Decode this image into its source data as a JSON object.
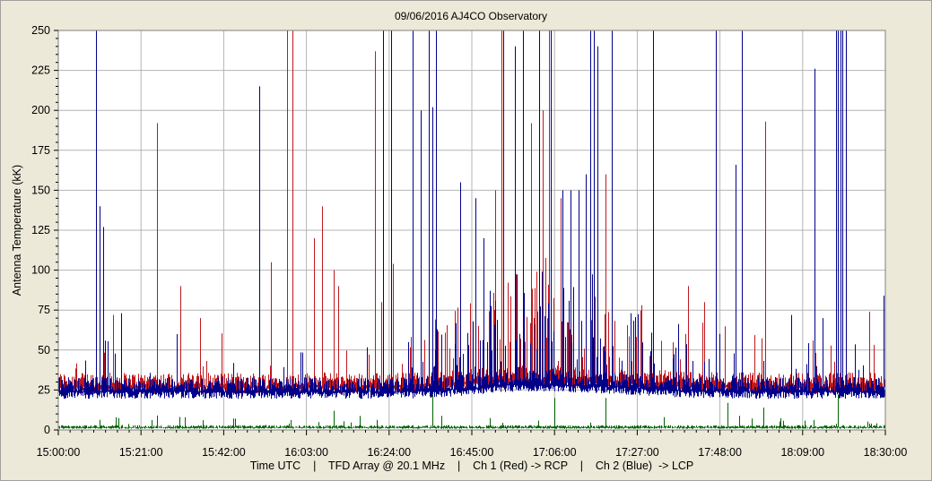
{
  "chart_data": {
    "type": "line",
    "title": "09/06/2016    AJ4CO Observatory",
    "ylabel": "Antenna Temperature (kK)",
    "xlabel": "Time UTC    |    TFD Array @ 20.1 MHz    |    Ch 1 (Red) -> RCP    |    Ch 2 (Blue)  -> LCP",
    "ylim": [
      0,
      250
    ],
    "y_ticks": [
      "0",
      "25",
      "50",
      "75",
      "100",
      "125",
      "150",
      "175",
      "200",
      "225",
      "250"
    ],
    "x_ticks": [
      "15:00:00",
      "15:21:00",
      "15:42:00",
      "16:03:00",
      "16:24:00",
      "16:45:00",
      "17:06:00",
      "17:27:00",
      "17:48:00",
      "18:09:00",
      "18:30:00"
    ],
    "xlim": [
      "15:00:00",
      "18:30:00"
    ],
    "grid": true,
    "colors": {
      "rcp": "#c0181e",
      "lcp": "#00008b",
      "diff": "#006400",
      "grid": "#b4b4b4",
      "plot_bg": "#ffffff"
    },
    "series": [
      {
        "channel": "Ch 1 (Red) -> RCP",
        "baseline": 27,
        "spikes": [
          [
            "15:25:00",
            192
          ],
          [
            "15:14:00",
            72
          ],
          [
            "15:31:00",
            90
          ],
          [
            "15:36:00",
            70
          ],
          [
            "15:54:00",
            105
          ],
          [
            "15:58:00",
            250
          ],
          [
            "15:59:30",
            250
          ],
          [
            "16:07:00",
            140
          ],
          [
            "16:05:00",
            120
          ],
          [
            "16:10:00",
            100
          ],
          [
            "16:20:30",
            237
          ],
          [
            "16:25:00",
            104
          ],
          [
            "16:11:00",
            90
          ],
          [
            "16:22:00",
            80
          ],
          [
            "16:51:00",
            150
          ],
          [
            "16:52:30",
            250
          ],
          [
            "16:53:00",
            240
          ],
          [
            "17:00:00",
            192
          ],
          [
            "17:03:00",
            200
          ],
          [
            "17:04:30",
            250
          ],
          [
            "17:07:30",
            145
          ],
          [
            "17:19:00",
            160
          ],
          [
            "17:28:00",
            78
          ],
          [
            "17:40:00",
            90
          ],
          [
            "17:44:00",
            80
          ],
          [
            "17:59:30",
            193
          ],
          [
            "18:19:00",
            74
          ],
          [
            "18:26:00",
            74
          ]
        ]
      },
      {
        "channel": "Ch 2 (Blue)  -> LCP",
        "baseline": 24,
        "spikes": [
          [
            "15:09:30",
            250
          ],
          [
            "15:10:30",
            140
          ],
          [
            "15:11:30",
            127
          ],
          [
            "15:16:00",
            73
          ],
          [
            "15:30:00",
            60
          ],
          [
            "15:51:00",
            215
          ],
          [
            "16:22:30",
            250
          ],
          [
            "16:24:30",
            250
          ],
          [
            "16:30:00",
            250
          ],
          [
            "16:34:00",
            250
          ],
          [
            "16:35:00",
            202
          ],
          [
            "16:36:00",
            250
          ],
          [
            "16:32:00",
            200
          ],
          [
            "16:42:00",
            155
          ],
          [
            "16:46:00",
            145
          ],
          [
            "16:48:00",
            120
          ],
          [
            "16:53:00",
            250
          ],
          [
            "16:56:00",
            240
          ],
          [
            "16:58:00",
            250
          ],
          [
            "17:02:00",
            250
          ],
          [
            "17:05:00",
            250
          ],
          [
            "17:08:00",
            150
          ],
          [
            "17:10:00",
            150
          ],
          [
            "17:12:00",
            150
          ],
          [
            "17:14:00",
            160
          ],
          [
            "17:15:00",
            250
          ],
          [
            "17:16:00",
            250
          ],
          [
            "17:17:00",
            240
          ],
          [
            "17:20:30",
            250
          ],
          [
            "17:31:00",
            250
          ],
          [
            "17:47:00",
            250
          ],
          [
            "17:53:30",
            250
          ],
          [
            "17:52:00",
            166
          ],
          [
            "18:06:00",
            72
          ],
          [
            "18:12:00",
            226
          ],
          [
            "18:14:00",
            70
          ],
          [
            "18:17:30",
            250
          ],
          [
            "18:18:00",
            250
          ],
          [
            "18:18:30",
            250
          ],
          [
            "18:19:00",
            250
          ],
          [
            "18:20:00",
            250
          ],
          [
            "18:29:30",
            84
          ]
        ]
      },
      {
        "channel": "difference",
        "baseline": 1.5,
        "spikes": [
          [
            "16:35:00",
            22
          ],
          [
            "17:06:00",
            20
          ],
          [
            "17:19:00",
            20
          ],
          [
            "17:50:00",
            17
          ],
          [
            "16:10:00",
            12
          ],
          [
            "15:25:00",
            9
          ],
          [
            "17:59:00",
            14
          ],
          [
            "18:18:00",
            22
          ],
          [
            "18:26:00",
            4
          ]
        ]
      }
    ]
  }
}
